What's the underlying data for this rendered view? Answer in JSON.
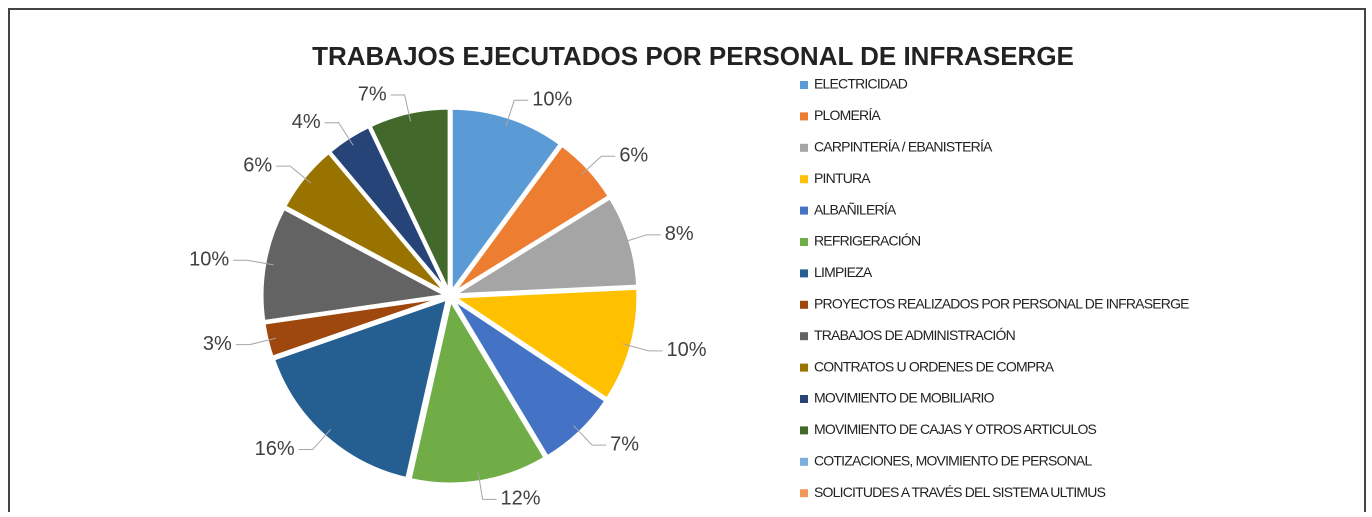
{
  "chart_data": {
    "type": "pie",
    "title": "TRABAJOS EJECUTADOS POR PERSONAL DE INFRASERGE",
    "categories": [
      "ELECTRICIDAD",
      "PLOMERÍA",
      "CARPINTERÍA / EBANISTERÍA",
      "PINTURA",
      "ALBAÑILERÍA",
      "REFRIGERACIÓN",
      "LIMPIEZA",
      "PROYECTOS REALIZADOS POR PERSONAL DE INFRASERGE",
      "TRABAJOS DE ADMINISTRACIÓN",
      "CONTRATOS U ORDENES DE COMPRA",
      "MOVIMIENTO DE MOBILIARIO",
      "MOVIMIENTO DE CAJAS Y OTROS ARTICULOS",
      "COTIZACIONES, MOVIMIENTO DE PERSONAL",
      "SOLICITUDES A TRAVÉS DEL SISTEMA ULTIMUS"
    ],
    "values": [
      10,
      6,
      8,
      10,
      7,
      12,
      16,
      3,
      10,
      6,
      4,
      7,
      0,
      0
    ],
    "value_labels": [
      "10%",
      "6%",
      "8%",
      "10%",
      "7%",
      "12%",
      "16%",
      "3%",
      "10%",
      "6%",
      "4%",
      "7%",
      null,
      null
    ],
    "colors": [
      "#5b9bd5",
      "#ed7d31",
      "#a5a5a5",
      "#ffc000",
      "#4472c4",
      "#70ad47",
      "#255e91",
      "#9e480e",
      "#636363",
      "#997300",
      "#264478",
      "#43682b",
      "#7cafdd",
      "#f1975a"
    ],
    "legend": "right"
  }
}
